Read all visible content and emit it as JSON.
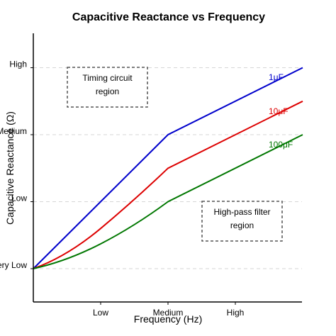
{
  "chart_data": {
    "type": "line",
    "title": "Capacitive Reactance vs Frequency",
    "xlabel": "Frequency (Hz)",
    "ylabel": "Capacitive Reactance (Ω)",
    "x_ticks": [
      {
        "label": "Low",
        "value": 1
      },
      {
        "label": "Medium",
        "value": 2
      },
      {
        "label": "High",
        "value": 3
      }
    ],
    "y_ticks": [
      {
        "label": "Very Low",
        "value": 1
      },
      {
        "label": "Low",
        "value": 2
      },
      {
        "label": "Medium",
        "value": 3
      },
      {
        "label": "High",
        "value": 4
      }
    ],
    "xlim": [
      0,
      4
    ],
    "ylim": [
      0,
      4.5
    ],
    "grid": "horizontal dashed",
    "series": [
      {
        "name": "1μF",
        "color": "#0000cc",
        "points": [
          [
            0,
            1
          ],
          [
            1,
            2
          ],
          [
            2,
            3
          ],
          [
            4,
            4
          ]
        ]
      },
      {
        "name": "10μF",
        "color": "#dd0000",
        "points": [
          [
            0,
            1
          ],
          [
            1,
            1.6
          ],
          [
            2,
            2.5
          ],
          [
            4,
            3.5
          ]
        ]
      },
      {
        "name": "100μF",
        "color": "#007700",
        "points": [
          [
            0,
            1
          ],
          [
            1,
            1.37
          ],
          [
            2,
            2
          ],
          [
            4,
            3
          ]
        ]
      }
    ],
    "annotations": [
      {
        "lines": [
          "Timing circuit",
          "region"
        ]
      },
      {
        "lines": [
          "High-pass filter",
          "region"
        ]
      }
    ]
  }
}
